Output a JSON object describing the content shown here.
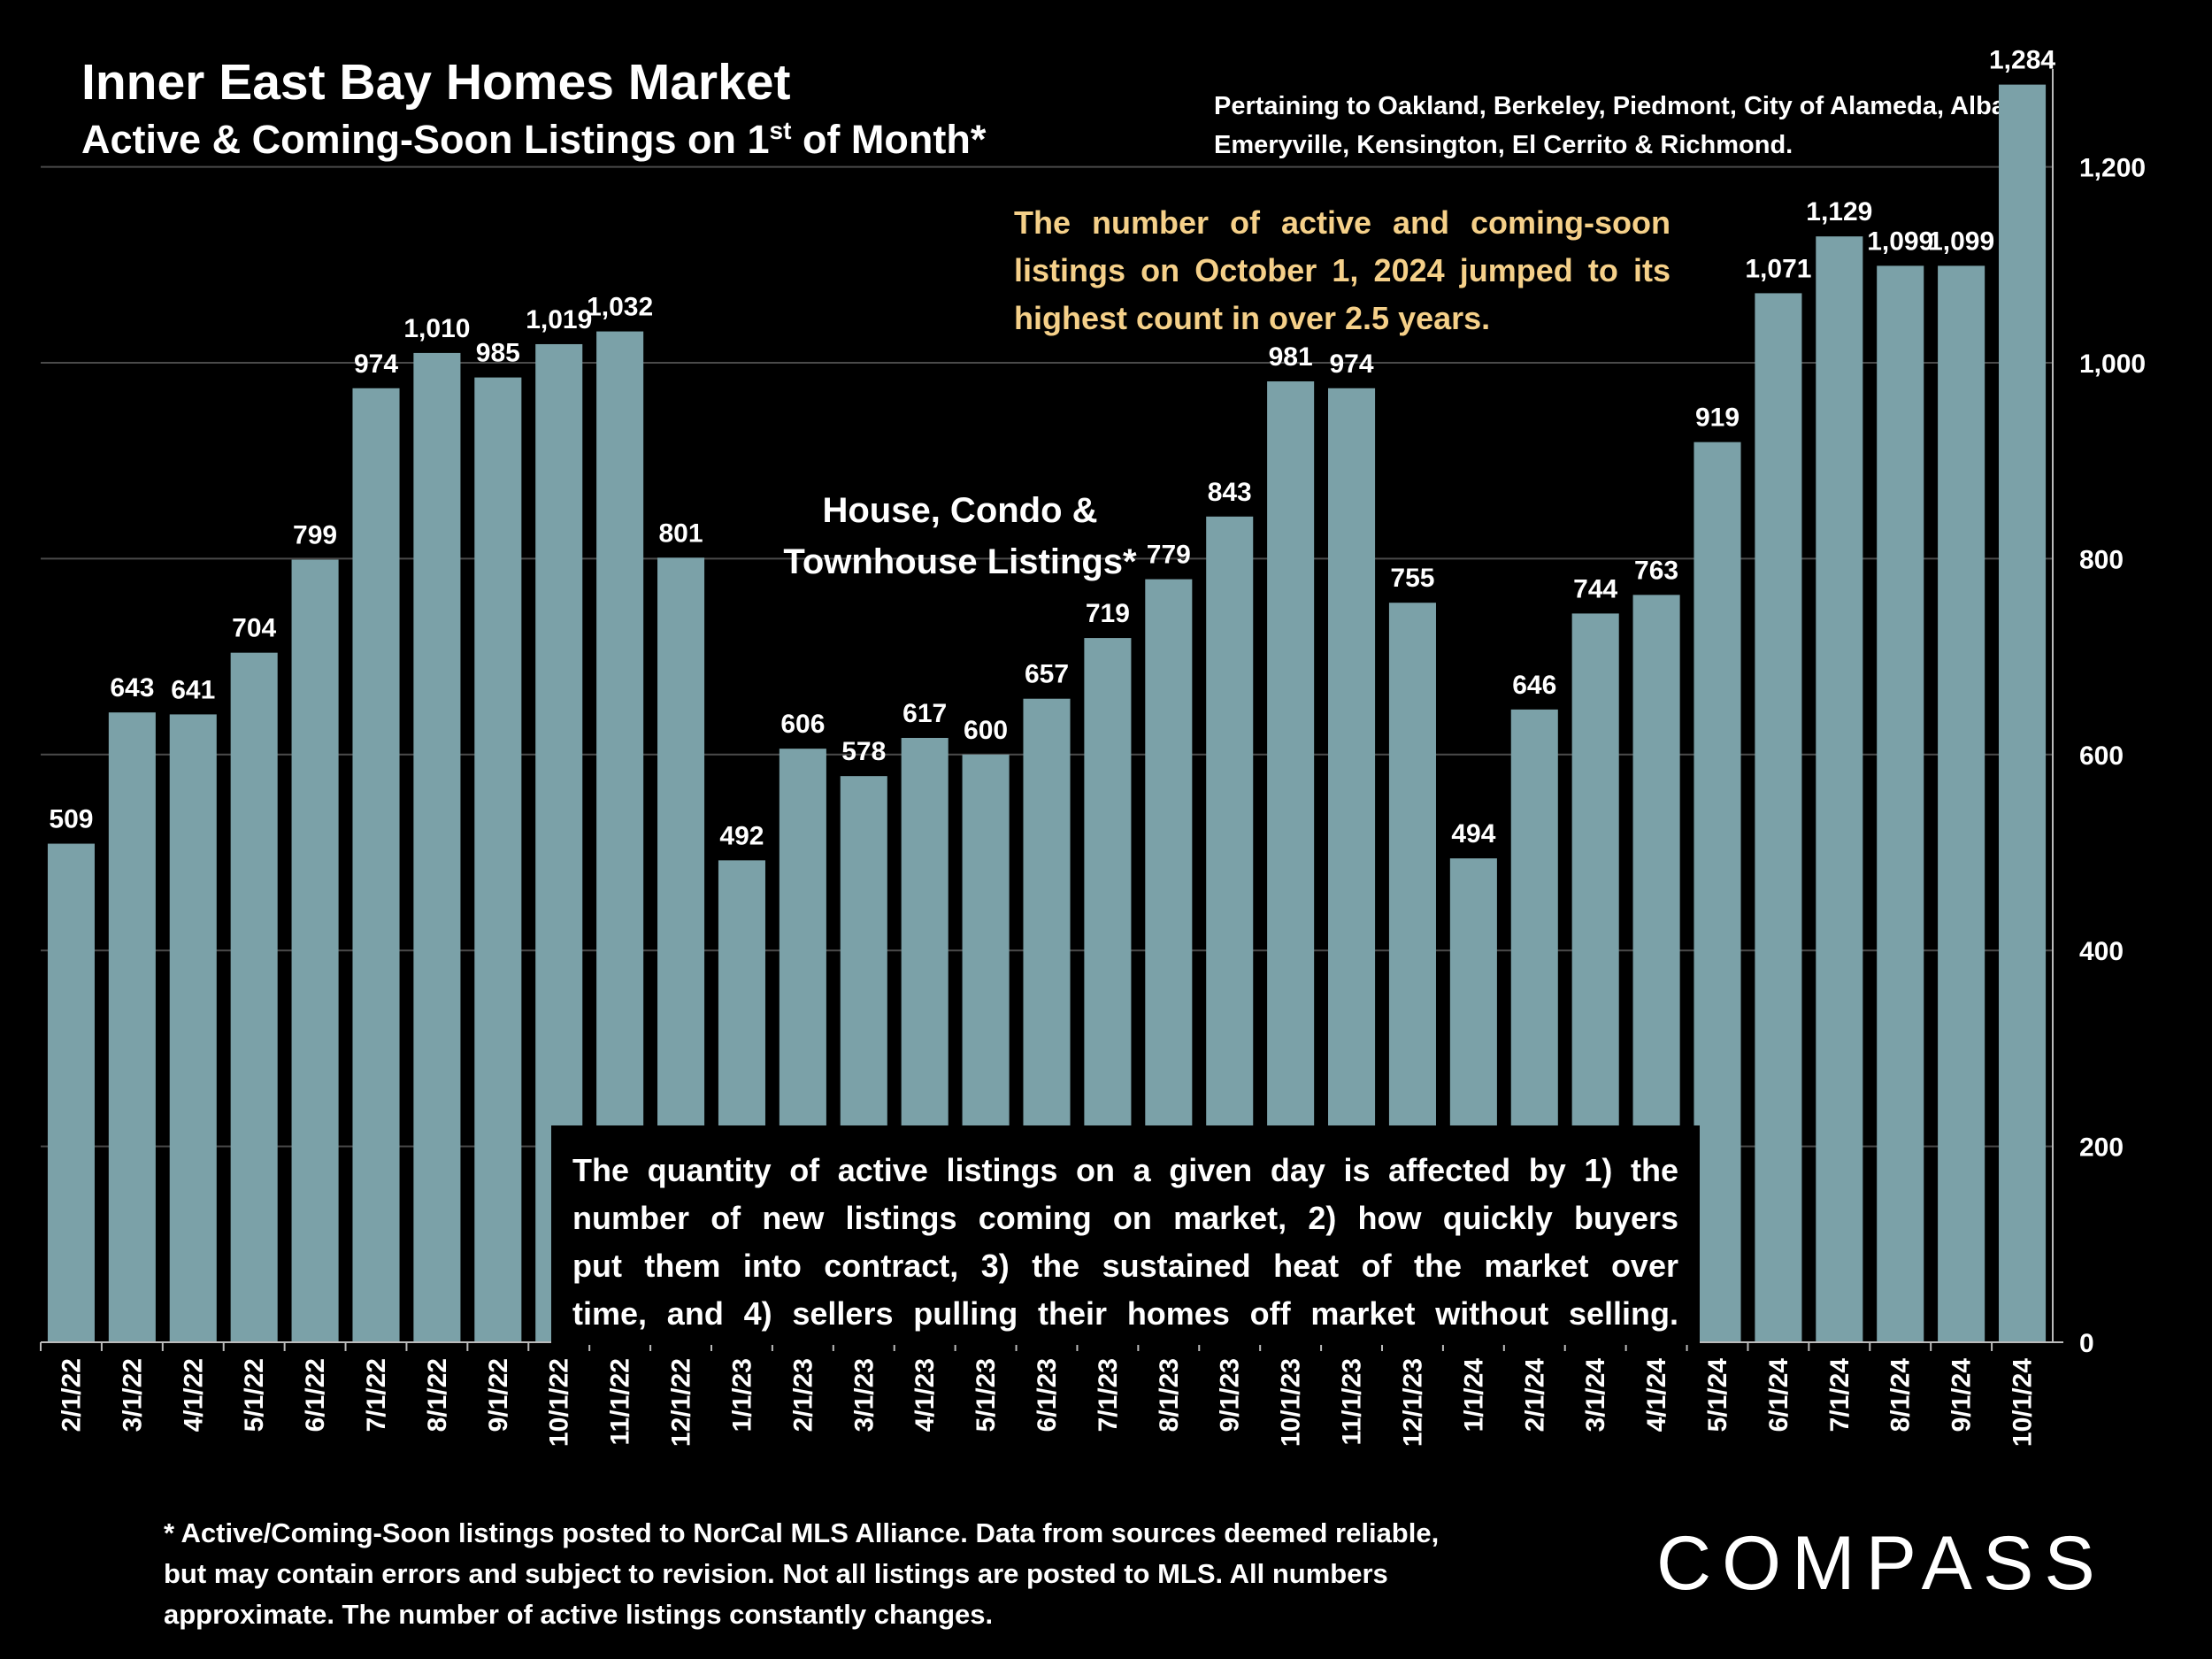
{
  "header": {
    "title": "Inner East Bay Homes Market",
    "subtitle_main": "Active & Coming-Soon Listings on 1",
    "subtitle_sup": "st",
    "subtitle_end": " of Month*",
    "pertaining": "Pertaining to Oakland, Berkeley, Piedmont, City of Alameda, Albany, Emeryville, Kensington, El Cerrito & Richmond."
  },
  "callout": "The number of active and coming-soon listings on October 1, 2024 jumped to its  highest count in over 2.5 years.",
  "series_label_line1": "House, Condo &",
  "series_label_line2": "Townhouse Listings*",
  "notebox": {
    "line1": "The quantity of active listings on a given day is affected by 1) the",
    "line2": "number of new listings coming on market, 2) how quickly buyers",
    "line3": "put them into contract, 3) the sustained heat of the market over",
    "line4": "time, and 4) sellers pulling their homes off market without selling."
  },
  "footnote": "* Active/Coming-Soon listings posted to NorCal MLS Alliance.  Data from sources deemed reliable, but may contain errors and subject to revision.  Not all listings are posted to MLS. All numbers approximate. The number of active listings constantly changes.",
  "logo": "COMPASS",
  "colors": {
    "bar": "#7ba1a8",
    "callout": "#f5d089",
    "background": "#000000",
    "grid": "#4a4a4a"
  },
  "chart_data": {
    "type": "bar",
    "title": "Inner East Bay Homes Market",
    "categories": [
      "2/1/22",
      "3/1/22",
      "4/1/22",
      "5/1/22",
      "6/1/22",
      "7/1/22",
      "8/1/22",
      "9/1/22",
      "10/1/22",
      "11/1/22",
      "12/1/22",
      "1/1/23",
      "2/1/23",
      "3/1/23",
      "4/1/23",
      "5/1/23",
      "6/1/23",
      "7/1/23",
      "8/1/23",
      "9/1/23",
      "10/1/23",
      "11/1/23",
      "12/1/23",
      "1/1/24",
      "2/1/24",
      "3/1/24",
      "4/1/24",
      "5/1/24",
      "6/1/24",
      "7/1/24",
      "8/1/24",
      "9/1/24",
      "10/1/24"
    ],
    "values": [
      509,
      643,
      641,
      704,
      799,
      974,
      1010,
      985,
      1019,
      1032,
      801,
      492,
      606,
      578,
      617,
      600,
      657,
      719,
      779,
      843,
      981,
      974,
      755,
      494,
      646,
      744,
      763,
      919,
      1071,
      1129,
      1099,
      1099,
      1284
    ],
    "labels": [
      "509",
      "643",
      "641",
      "704",
      "799",
      "974",
      "1,010",
      "985",
      "1,019",
      "1,032",
      "801",
      "492",
      "606",
      "578",
      "617",
      "600",
      "657",
      "719",
      "779",
      "843",
      "981",
      "974",
      "755",
      "494",
      "646",
      "744",
      "763",
      "919",
      "1,071",
      "1,129",
      "1,099",
      "1,099",
      "1,284"
    ],
    "ylim": [
      0,
      1300
    ],
    "yticks": [
      0,
      200,
      400,
      600,
      800,
      1000,
      1200
    ],
    "ytick_labels": [
      "0",
      "200",
      "400",
      "600",
      "800",
      "1,000",
      "1,200"
    ],
    "y_axis_side": "right",
    "grid": true
  }
}
